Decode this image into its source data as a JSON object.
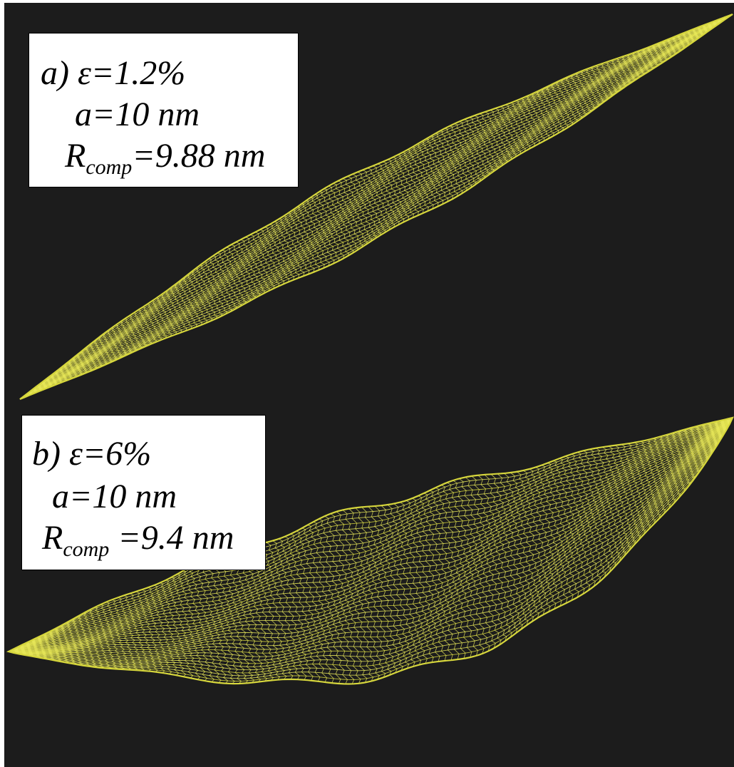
{
  "colors": {
    "background": "#1c1c1c",
    "mesh": "#e8e85a",
    "mesh_dense": "#d6d63c",
    "label_background": "#ffffff",
    "label_text": "#000000"
  },
  "panels": [
    {
      "id": "a",
      "prefix": "a)",
      "epsilon": "ε=1.2%",
      "a": "a=10 nm",
      "r_symbol": "R",
      "r_sub": "comp",
      "r_value": "=9.88 nm",
      "mesh_shape": "thin-lens-membrane"
    },
    {
      "id": "b",
      "prefix": "b)",
      "epsilon": "ε=6%",
      "a": "a=10 nm",
      "r_symbol": "R",
      "r_sub": "comp",
      "r_value": " =9.4 nm",
      "mesh_shape": "deep-bowl-membrane"
    }
  ]
}
